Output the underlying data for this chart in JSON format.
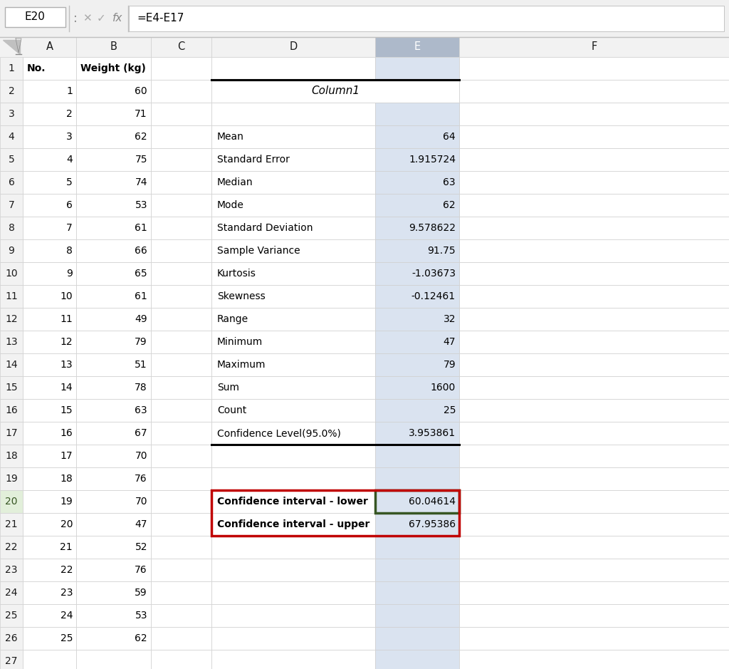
{
  "formula_bar_cell": "E20",
  "formula_bar_formula": "=E4-E17",
  "col_A_data": [
    "No.",
    1,
    2,
    3,
    4,
    5,
    6,
    7,
    8,
    9,
    10,
    11,
    12,
    13,
    14,
    15,
    16,
    17,
    18,
    19,
    20,
    21,
    22,
    23,
    24,
    25,
    ""
  ],
  "col_B_data": [
    "Weight (kg)",
    60,
    71,
    62,
    75,
    74,
    53,
    61,
    66,
    65,
    61,
    49,
    79,
    51,
    78,
    63,
    67,
    70,
    76,
    70,
    47,
    52,
    76,
    59,
    53,
    62,
    ""
  ],
  "stats_labels": [
    "Mean",
    "Standard Error",
    "Median",
    "Mode",
    "Standard Deviation",
    "Sample Variance",
    "Kurtosis",
    "Skewness",
    "Range",
    "Minimum",
    "Maximum",
    "Sum",
    "Count",
    "Confidence Level(95.0%)"
  ],
  "stats_values": [
    "64",
    "1.915724",
    "63",
    "62",
    "9.578622",
    "91.75",
    "-1.03673",
    "-0.12461",
    "32",
    "47",
    "79",
    "1600",
    "25",
    "3.953861"
  ],
  "column1_label": "Column1",
  "ci_lower_label": "Confidence interval - lower",
  "ci_lower_value": "60.04614",
  "ci_upper_label": "Confidence interval - upper",
  "ci_upper_value": "67.95386",
  "grid_color": "#d0d0d0",
  "red_border_color": "#c00000",
  "green_border_color": "#375623",
  "col_e_header_bg": "#adb9ca",
  "col_e_bg": "#dae3f0",
  "row20_num_color": "#375623",
  "row20_num_bg": "#e2efda"
}
